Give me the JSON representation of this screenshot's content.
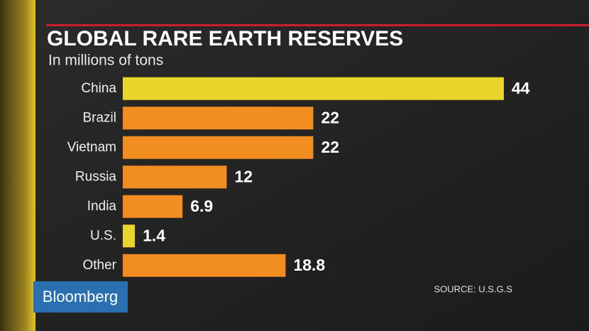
{
  "chart_data": {
    "type": "bar",
    "orientation": "horizontal",
    "title": "GLOBAL RARE EARTH RESERVES",
    "subtitle": "In millions of tons",
    "categories": [
      "China",
      "Brazil",
      "Vietnam",
      "Russia",
      "India",
      "U.S.",
      "Other"
    ],
    "values": [
      44,
      22,
      22,
      12,
      6.9,
      1.4,
      18.8
    ],
    "colors": [
      "#e9d52b",
      "#f28d22",
      "#f28d22",
      "#f28d22",
      "#f28d22",
      "#e9d52b",
      "#f28d22"
    ],
    "source": "SOURCE: U.S.G.S"
  },
  "branding": "Bloomberg"
}
